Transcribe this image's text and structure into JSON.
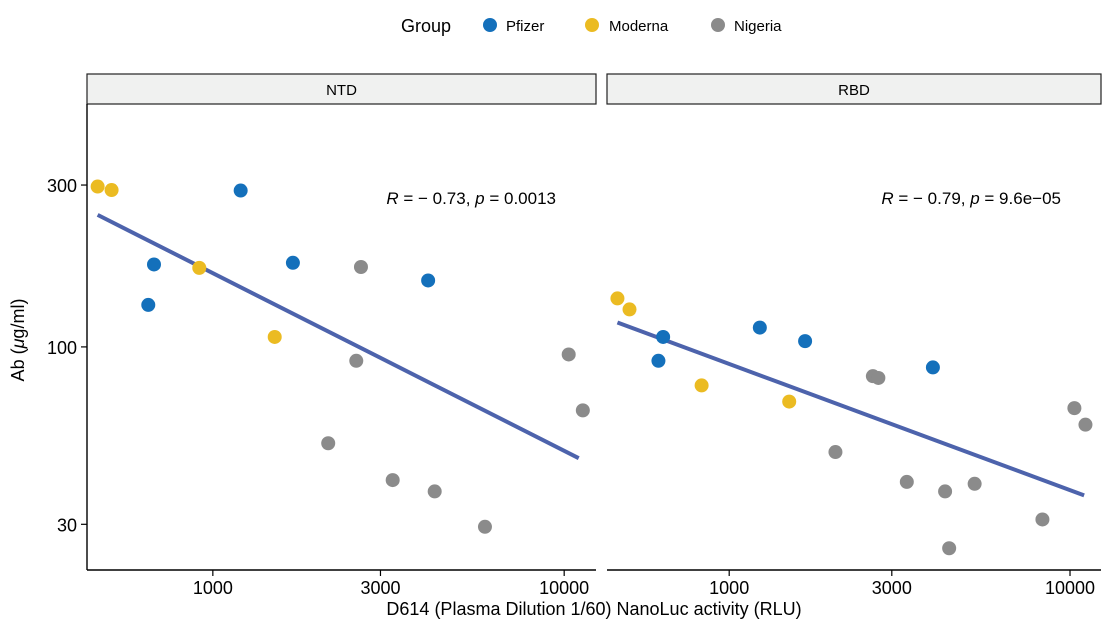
{
  "legend": {
    "title": "Group",
    "groups": [
      {
        "name": "Pfizer",
        "color": "#1470BB"
      },
      {
        "name": "Moderna",
        "color": "#EBBB22"
      },
      {
        "name": "Nigeria",
        "color": "#8B8B8B"
      }
    ]
  },
  "colors": {
    "strip_fill": "#F0F1F0",
    "trend_line": "#4D63AC",
    "axis": "#000000"
  },
  "chart_data": {
    "type": "scatter",
    "xlabel": "D614 (Plasma Dilution 1/60) NanoLuc activity (RLU)",
    "ylabel": "Ab (μg/ml)",
    "x_scale": "log10",
    "y_scale": "log10",
    "xlim": [
      450,
      12000
    ],
    "ylim": [
      22,
      520
    ],
    "x_ticks": [
      1000,
      3000,
      10000
    ],
    "x_tick_labels": [
      "1000",
      "3000",
      "10000"
    ],
    "y_ticks": [
      30,
      100,
      300
    ],
    "y_tick_labels": [
      "30",
      "100",
      "300"
    ],
    "grid": false,
    "legend_position": "top",
    "panels": [
      {
        "strip": "NTD",
        "annotation": {
          "r": "− 0.73",
          "p": "0.0013"
        },
        "trend_line": {
          "x": [
            470,
            11000
          ],
          "y": [
            245,
            47
          ]
        },
        "points": [
          {
            "group": "Moderna",
            "x": 470,
            "y": 297
          },
          {
            "group": "Moderna",
            "x": 515,
            "y": 290
          },
          {
            "group": "Pfizer",
            "x": 680,
            "y": 175
          },
          {
            "group": "Pfizer",
            "x": 655,
            "y": 133
          },
          {
            "group": "Moderna",
            "x": 915,
            "y": 171
          },
          {
            "group": "Pfizer",
            "x": 1200,
            "y": 289
          },
          {
            "group": "Moderna",
            "x": 1500,
            "y": 107
          },
          {
            "group": "Pfizer",
            "x": 1690,
            "y": 177
          },
          {
            "group": "Nigeria",
            "x": 2560,
            "y": 91
          },
          {
            "group": "Nigeria",
            "x": 2640,
            "y": 172
          },
          {
            "group": "Nigeria",
            "x": 2130,
            "y": 52
          },
          {
            "group": "Nigeria",
            "x": 3250,
            "y": 40.5
          },
          {
            "group": "Pfizer",
            "x": 4100,
            "y": 157
          },
          {
            "group": "Nigeria",
            "x": 4280,
            "y": 37.5
          },
          {
            "group": "Nigeria",
            "x": 5950,
            "y": 29.5
          },
          {
            "group": "Nigeria",
            "x": 10300,
            "y": 95
          },
          {
            "group": "Nigeria",
            "x": 11300,
            "y": 65
          }
        ]
      },
      {
        "strip": "RBD",
        "annotation": {
          "r": "− 0.79",
          "p": "9.6e−05"
        },
        "trend_line": {
          "x": [
            470,
            11000
          ],
          "y": [
            118,
            36.5
          ]
        },
        "points": [
          {
            "group": "Moderna",
            "x": 470,
            "y": 139
          },
          {
            "group": "Moderna",
            "x": 510,
            "y": 129
          },
          {
            "group": "Pfizer",
            "x": 640,
            "y": 107
          },
          {
            "group": "Pfizer",
            "x": 620,
            "y": 91
          },
          {
            "group": "Moderna",
            "x": 830,
            "y": 77
          },
          {
            "group": "Pfizer",
            "x": 1230,
            "y": 114
          },
          {
            "group": "Moderna",
            "x": 1500,
            "y": 69
          },
          {
            "group": "Pfizer",
            "x": 1670,
            "y": 104
          },
          {
            "group": "Nigeria",
            "x": 2050,
            "y": 49
          },
          {
            "group": "Nigeria",
            "x": 2640,
            "y": 82
          },
          {
            "group": "Nigeria",
            "x": 2740,
            "y": 81
          },
          {
            "group": "Nigeria",
            "x": 3320,
            "y": 40
          },
          {
            "group": "Pfizer",
            "x": 3960,
            "y": 87
          },
          {
            "group": "Nigeria",
            "x": 4300,
            "y": 37.5
          },
          {
            "group": "Nigeria",
            "x": 4420,
            "y": 25.5
          },
          {
            "group": "Nigeria",
            "x": 5250,
            "y": 39.5
          },
          {
            "group": "Nigeria",
            "x": 8300,
            "y": 31
          },
          {
            "group": "Nigeria",
            "x": 10300,
            "y": 66
          },
          {
            "group": "Nigeria",
            "x": 11100,
            "y": 59
          }
        ]
      }
    ]
  }
}
